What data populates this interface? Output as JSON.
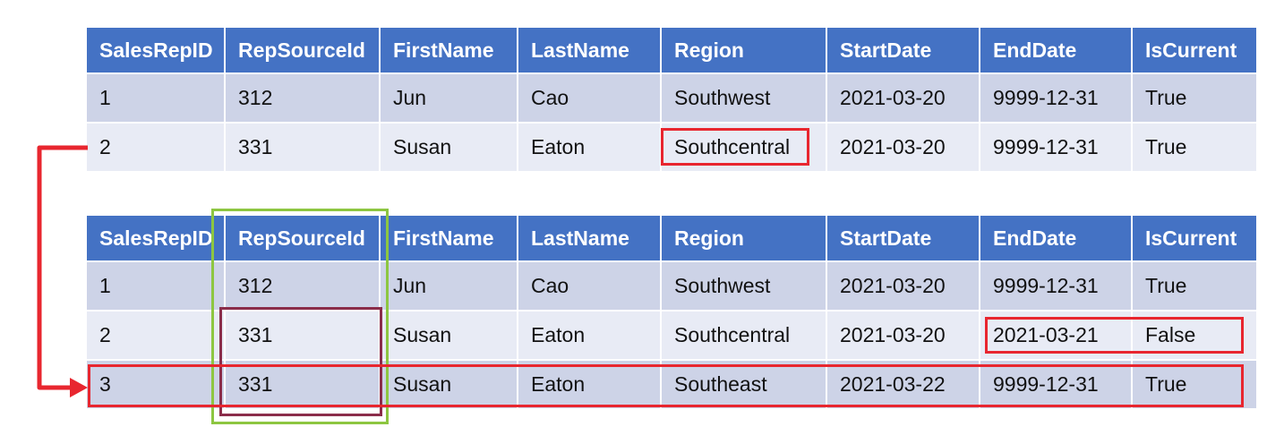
{
  "columns": [
    "SalesRepID",
    "RepSourceId",
    "FirstName",
    "LastName",
    "Region",
    "StartDate",
    "EndDate",
    "IsCurrent"
  ],
  "top_table": {
    "rows": [
      [
        "1",
        "312",
        "Jun",
        "Cao",
        "Southwest",
        "2021-03-20",
        "9999-12-31",
        "True"
      ],
      [
        "2",
        "331",
        "Susan",
        "Eaton",
        "Southcentral",
        "2021-03-20",
        "9999-12-31",
        "True"
      ]
    ]
  },
  "bottom_table": {
    "rows": [
      [
        "1",
        "312",
        "Jun",
        "Cao",
        "Southwest",
        "2021-03-20",
        "9999-12-31",
        "True"
      ],
      [
        "2",
        "331",
        "Susan",
        "Eaton",
        "Southcentral",
        "2021-03-20",
        "2021-03-21",
        "False"
      ],
      [
        "3",
        "331",
        "Susan",
        "Eaton",
        "Southeast",
        "2021-03-22",
        "9999-12-31",
        "True"
      ]
    ]
  },
  "colors": {
    "header_bg": "#4472c4",
    "row_odd_bg": "#cdd3e7",
    "row_even_bg": "#e8ebf5",
    "highlight_red": "#e8262f",
    "highlight_green": "#8dc641",
    "highlight_maroon": "#8b2d4a"
  }
}
